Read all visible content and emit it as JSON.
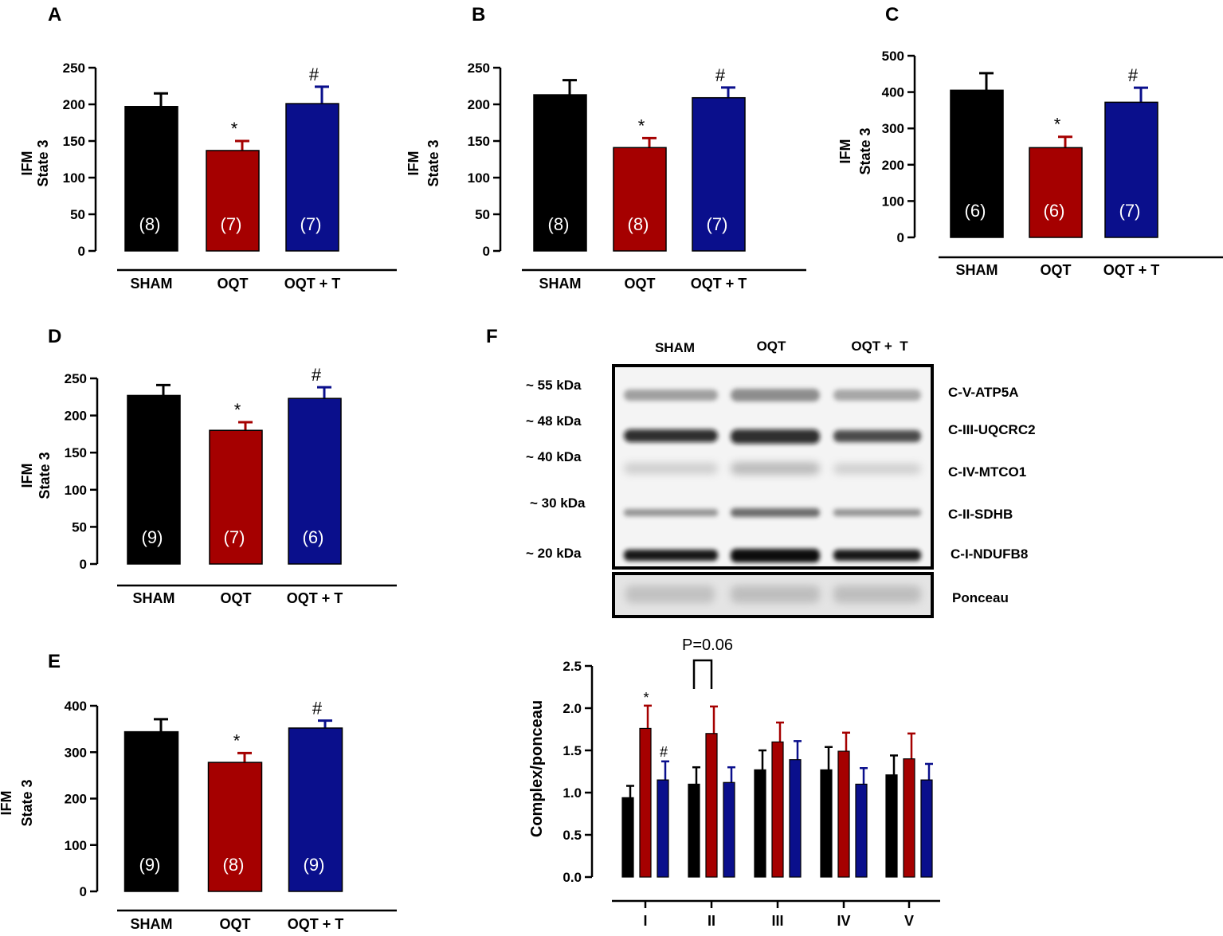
{
  "colors": {
    "sham": "#000000",
    "oqt": "#a50000",
    "oqtt": "#0a0f8c"
  },
  "chart_data": [
    {
      "panel": "A",
      "type": "bar",
      "ylabel": [
        "IFM",
        "State 3"
      ],
      "ylim": [
        0,
        250
      ],
      "yticks": [
        0,
        50,
        100,
        150,
        200,
        250
      ],
      "categories": [
        "SHAM",
        "OQT",
        "OQT + T"
      ],
      "values": [
        197,
        137,
        201
      ],
      "errors": [
        18,
        13,
        23
      ],
      "n_labels": [
        "(8)",
        "(7)",
        "(7)"
      ],
      "sig": [
        "",
        "*",
        "#"
      ]
    },
    {
      "panel": "B",
      "type": "bar",
      "ylabel": [
        "IFM",
        "State 3"
      ],
      "ylim": [
        0,
        250
      ],
      "yticks": [
        0,
        50,
        100,
        150,
        200,
        250
      ],
      "categories": [
        "SHAM",
        "OQT",
        "OQT + T"
      ],
      "values": [
        213,
        141,
        209
      ],
      "errors": [
        20,
        13,
        14
      ],
      "n_labels": [
        "(8)",
        "(8)",
        "(7)"
      ],
      "sig": [
        "",
        "*",
        "#"
      ]
    },
    {
      "panel": "C",
      "type": "bar",
      "ylabel": [
        "IFM",
        "State 3"
      ],
      "ylim": [
        0,
        500
      ],
      "yticks": [
        0,
        100,
        200,
        300,
        400,
        500
      ],
      "categories": [
        "SHAM",
        "OQT",
        "OQT + T"
      ],
      "values": [
        405,
        247,
        372
      ],
      "errors": [
        47,
        30,
        40
      ],
      "n_labels": [
        "(6)",
        "(6)",
        "(7)"
      ],
      "sig": [
        "",
        "*",
        "#"
      ]
    },
    {
      "panel": "D",
      "type": "bar",
      "ylabel": [
        "IFM",
        "State 3"
      ],
      "ylim": [
        0,
        250
      ],
      "yticks": [
        0,
        50,
        100,
        150,
        200,
        250
      ],
      "categories": [
        "SHAM",
        "OQT",
        "OQT + T"
      ],
      "values": [
        227,
        180,
        223
      ],
      "errors": [
        14,
        11,
        15
      ],
      "n_labels": [
        "(9)",
        "(7)",
        "(6)"
      ],
      "sig": [
        "",
        "*",
        "#"
      ]
    },
    {
      "panel": "E",
      "type": "bar",
      "ylabel": [
        "IFM",
        "State 3"
      ],
      "ylim": [
        0,
        400
      ],
      "yticks": [
        0,
        100,
        200,
        300,
        400
      ],
      "categories": [
        "SHAM",
        "OQT",
        "OQT + T"
      ],
      "values": [
        344,
        278,
        352
      ],
      "errors": [
        27,
        20,
        16
      ],
      "n_labels": [
        "(9)",
        "(8)",
        "(9)"
      ],
      "sig": [
        "",
        "*",
        "#"
      ]
    },
    {
      "panel": "F",
      "type": "bar",
      "ylabel": "Complex/ponceau",
      "ylim": [
        0,
        2.5
      ],
      "yticks": [
        "0.0",
        "0.5",
        "1.0",
        "1.5",
        "2.0",
        "2.5"
      ],
      "categories": [
        "I",
        "II",
        "III",
        "IV",
        "V"
      ],
      "series": [
        {
          "name": "SHAM",
          "values": [
            0.94,
            1.1,
            1.27,
            1.27,
            1.21
          ],
          "errors": [
            0.14,
            0.2,
            0.23,
            0.27,
            0.23
          ]
        },
        {
          "name": "OQT",
          "values": [
            1.76,
            1.7,
            1.6,
            1.49,
            1.4
          ],
          "errors": [
            0.27,
            0.32,
            0.23,
            0.22,
            0.3
          ]
        },
        {
          "name": "OQT + T",
          "values": [
            1.15,
            1.12,
            1.39,
            1.1,
            1.15
          ],
          "errors": [
            0.22,
            0.18,
            0.22,
            0.19,
            0.19
          ]
        }
      ],
      "annotations": {
        "star": "*",
        "hash": "#",
        "pvalue": "P=0.06"
      }
    }
  ],
  "western_blot": {
    "columns": [
      "SHAM",
      "OQT",
      "OQT +  T"
    ],
    "markers": [
      "~ 55 kDa",
      "~ 48 kDa",
      "~ 40 kDa",
      "~ 30 kDa",
      "~ 20 kDa"
    ],
    "bands": [
      "C-V-ATP5A",
      "C-III-UQCRC2",
      "C-IV-MTCO1",
      "C-II-SDHB",
      "C-I-NDUFB8"
    ],
    "loading_control": "Ponceau"
  }
}
